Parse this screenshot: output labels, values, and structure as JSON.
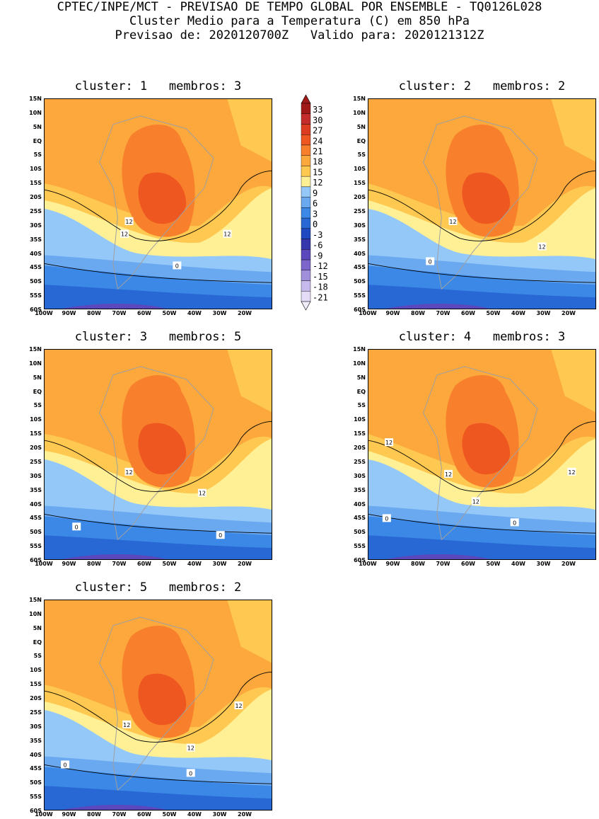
{
  "header": {
    "line1": "CPTEC/INPE/MCT - PREVISAO DE TEMPO GLOBAL POR ENSEMBLE - TQ0126L028",
    "line2": "Cluster Medio para a Temperatura (C) em 850 hPa",
    "line3": "Previsao de: 2020120700Z   Valido para: 2020121312Z"
  },
  "axes": {
    "lat_labels": [
      "15N",
      "10N",
      "5N",
      "EQ",
      "5S",
      "10S",
      "15S",
      "20S",
      "25S",
      "30S",
      "35S",
      "40S",
      "45S",
      "50S",
      "55S",
      "60S"
    ],
    "lon_labels": [
      "100W",
      "90W",
      "80W",
      "70W",
      "60W",
      "50W",
      "40W",
      "30W",
      "20W"
    ]
  },
  "colorbar": {
    "labels": [
      "33",
      "30",
      "27",
      "24",
      "21",
      "18",
      "15",
      "12",
      "9",
      "6",
      "3",
      "0",
      "-3",
      "-6",
      "-9",
      "-12",
      "-15",
      "-18",
      "-21"
    ],
    "colors": [
      "#a01818",
      "#c42c2c",
      "#dc3c20",
      "#ee5820",
      "#f8802c",
      "#fca83c",
      "#ffc850",
      "#fff096",
      "#94c8f8",
      "#6aa8f0",
      "#3c88e6",
      "#2868d4",
      "#2048c0",
      "#3836ac",
      "#5a48bc",
      "#7c66cc",
      "#a090dc",
      "#c6baec",
      "#e4dcf6"
    ]
  },
  "panels": [
    {
      "title": "cluster: 1   membros: 3",
      "contour_labels": [
        "12",
        "12",
        "12",
        "0"
      ]
    },
    {
      "title": "cluster: 2   membros: 2",
      "contour_labels": [
        "12",
        "12",
        "0"
      ]
    },
    {
      "title": "cluster: 3   membros: 5",
      "contour_labels": [
        "12",
        "12",
        "0",
        "0"
      ]
    },
    {
      "title": "cluster: 4   membros: 3",
      "contour_labels": [
        "12",
        "12",
        "12",
        "12",
        "0",
        "0"
      ]
    },
    {
      "title": "cluster: 5   membros: 2",
      "contour_labels": [
        "12",
        "12",
        "12",
        "0",
        "0"
      ]
    }
  ]
}
